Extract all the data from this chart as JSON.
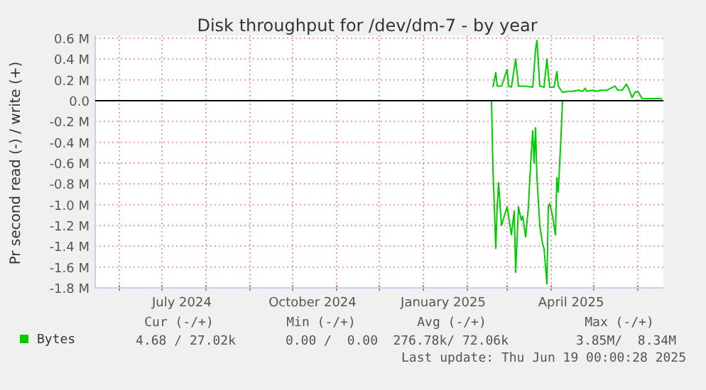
{
  "chart_data": {
    "type": "line",
    "title": "Disk throughput for /dev/dm-7 - by year",
    "ylabel": "Pr second read (-) / write (+)",
    "xlim": [
      "2024-05-15",
      "2025-06-19"
    ],
    "xticks": [
      {
        "value": "2024-06-01",
        "label": null
      },
      {
        "value": "2024-07-01",
        "label": null
      },
      {
        "value": "2024-07-15",
        "label": "July 2024"
      },
      {
        "value": "2024-08-01",
        "label": null
      },
      {
        "value": "2024-09-01",
        "label": null
      },
      {
        "value": "2024-10-01",
        "label": null
      },
      {
        "value": "2024-10-15",
        "label": "October 2024"
      },
      {
        "value": "2024-11-01",
        "label": null
      },
      {
        "value": "2024-12-01",
        "label": null
      },
      {
        "value": "2025-01-01",
        "label": null
      },
      {
        "value": "2025-01-15",
        "label": "January 2025"
      },
      {
        "value": "2025-02-01",
        "label": null
      },
      {
        "value": "2025-03-01",
        "label": null
      },
      {
        "value": "2025-04-01",
        "label": null
      },
      {
        "value": "2025-04-15",
        "label": "April 2025"
      },
      {
        "value": "2025-05-01",
        "label": null
      },
      {
        "value": "2025-06-01",
        "label": null
      }
    ],
    "ylim": [
      -1800000,
      600000
    ],
    "yticks": [
      {
        "value": 600000,
        "label": "0.6 M"
      },
      {
        "value": 400000,
        "label": "0.4 M"
      },
      {
        "value": 200000,
        "label": "0.2 M"
      },
      {
        "value": 0,
        "label": "0.0"
      },
      {
        "value": -200000,
        "label": "-0.2 M"
      },
      {
        "value": -400000,
        "label": "-0.4 M"
      },
      {
        "value": -600000,
        "label": "-0.6 M"
      },
      {
        "value": -800000,
        "label": "-0.8 M"
      },
      {
        "value": -1000000,
        "label": "-1.0 M"
      },
      {
        "value": -1200000,
        "label": "-1.2 M"
      },
      {
        "value": -1400000,
        "label": "-1.4 M"
      },
      {
        "value": -1600000,
        "label": "-1.6 M"
      },
      {
        "value": -1800000,
        "label": "-1.8 M"
      }
    ],
    "grid": true,
    "legend": "bottom",
    "ref_lines": [
      {
        "axis": "y",
        "value": 0,
        "color": "#000000"
      }
    ],
    "series": [
      {
        "name": "Bytes",
        "color": "#00cc00",
        "x": [
          "2025-02-19",
          "2025-02-21",
          "2025-02-22",
          "2025-02-25",
          "2025-03-01",
          "2025-03-02",
          "2025-03-04",
          "2025-03-07",
          "2025-03-09",
          "2025-03-14",
          "2025-03-19",
          "2025-03-21",
          "2025-03-22",
          "2025-03-24",
          "2025-03-27",
          "2025-03-29",
          "2025-03-31",
          "2025-04-03",
          "2025-04-05",
          "2025-04-06",
          "2025-04-09",
          "2025-04-13",
          "2025-04-16",
          "2025-04-20",
          "2025-04-23",
          "2025-04-25",
          "2025-04-26",
          "2025-04-30",
          "2025-05-03",
          "2025-05-06",
          "2025-05-10",
          "2025-05-16",
          "2025-05-18",
          "2025-05-21",
          "2025-05-24",
          "2025-05-26",
          "2025-05-28",
          "2025-05-30",
          "2025-06-01",
          "2025-06-04",
          "2025-06-18"
        ],
        "values": [
          130000,
          270000,
          140000,
          140000,
          300000,
          140000,
          130000,
          400000,
          140000,
          140000,
          130000,
          490000,
          580000,
          140000,
          130000,
          400000,
          130000,
          130000,
          280000,
          140000,
          80000,
          90000,
          90000,
          100000,
          90000,
          120000,
          90000,
          100000,
          90000,
          100000,
          100000,
          140000,
          100000,
          100000,
          160000,
          100000,
          30000,
          80000,
          90000,
          20000,
          20000
        ]
      },
      {
        "color": "#00cc00",
        "x": [
          "2025-02-18",
          "2025-02-19",
          "2025-02-20",
          "2025-02-21",
          "2025-02-22",
          "2025-02-23",
          "2025-02-25",
          "2025-02-27",
          "2025-03-01",
          "2025-03-03",
          "2025-03-04",
          "2025-03-06",
          "2025-03-07",
          "2025-03-09",
          "2025-03-11",
          "2025-03-12",
          "2025-03-14",
          "2025-03-16",
          "2025-03-17",
          "2025-03-19",
          "2025-03-20",
          "2025-03-21",
          "2025-03-22",
          "2025-03-24",
          "2025-03-26",
          "2025-03-27",
          "2025-03-29",
          "2025-03-30",
          "2025-03-31",
          "2025-04-02",
          "2025-04-04",
          "2025-04-05",
          "2025-04-06",
          "2025-04-08",
          "2025-04-09"
        ],
        "values": [
          0,
          -650000,
          -1020000,
          -1420000,
          -1020000,
          -790000,
          -1200000,
          -1110000,
          -1020000,
          -1200000,
          -1290000,
          -1060000,
          -1650000,
          -1020000,
          -1150000,
          -1110000,
          -1310000,
          -1020000,
          -740000,
          -290000,
          -600000,
          -260000,
          -740000,
          -1200000,
          -1380000,
          -1420000,
          -1760000,
          -1020000,
          -990000,
          -1110000,
          -1290000,
          -740000,
          -880000,
          -330000,
          0
        ]
      }
    ],
    "annotations": [
      "Cur (-/+)",
      "Min (-/+)",
      "Avg (-/+)",
      "Max (-/+)",
      "4.68 / 27.02k",
      "0.00 /  0.00",
      "276.78k/ 72.06k",
      "3.85M/  8.34M",
      "Last update: Thu Jun 19 00:00:28 2025"
    ]
  }
}
